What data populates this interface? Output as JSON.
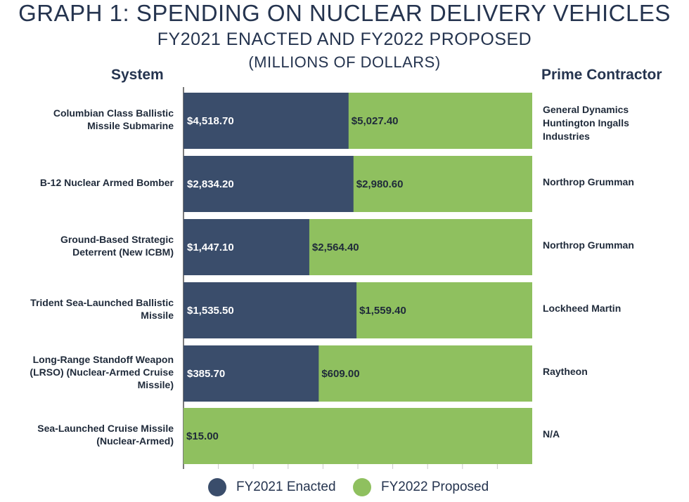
{
  "chart_data": {
    "type": "bar",
    "layout": "horizontal-stacked",
    "title": "GRAPH 1: SPENDING ON NUCLEAR DELIVERY VEHICLES",
    "subtitle": "FY2021 ENACTED AND FY2022 PROPOSED",
    "units": "(MILLIONS OF DOLLARS)",
    "system_header": "System",
    "contractor_header": "Prime Contractor",
    "categories": [
      "Columbian Class Ballistic Missile Submarine",
      "B-12 Nuclear Armed Bomber",
      "Ground-Based Strategic Deterrent (New ICBM)",
      "Trident Sea-Launched Ballistic Missile",
      "Long-Range Standoff Weapon (LRSO) (Nuclear-Armed Cruise Missile)",
      "Sea-Launched Cruise Missile (Nuclear-Armed)"
    ],
    "category_lines": [
      [
        "Columbian Class Ballistic",
        "Missile Submarine"
      ],
      [
        "B-12 Nuclear Armed Bomber"
      ],
      [
        "Ground-Based Strategic",
        "Deterrent (New ICBM)"
      ],
      [
        "Trident Sea-Launched Ballistic",
        "Missile"
      ],
      [
        "Long-Range Standoff Weapon",
        "(LRSO) (Nuclear-Armed Cruise",
        "Missile)"
      ],
      [
        "Sea-Launched Cruise Missile",
        "(Nuclear-Armed)"
      ]
    ],
    "contractors": [
      [
        "General Dynamics",
        "Huntington Ingalls",
        "Industries"
      ],
      [
        "Northrop Grumman"
      ],
      [
        "Northrop Grumman"
      ],
      [
        "Lockheed Martin"
      ],
      [
        "Raytheon"
      ],
      [
        "N/A"
      ]
    ],
    "series": [
      {
        "name": "FY2021 Enacted",
        "color": "#3a4d6b",
        "values": [
          4518.7,
          2834.2,
          1447.1,
          1535.5,
          385.7,
          null
        ],
        "labels": [
          "$4,518.70",
          "$2,834.20",
          "$1,447.10",
          "$1,535.50",
          "$385.70",
          null
        ]
      },
      {
        "name": "FY2022 Proposed",
        "color": "#8fc05f",
        "values": [
          5027.4,
          2980.6,
          2564.4,
          1559.4,
          609.0,
          15.0
        ],
        "labels": [
          "$5,027.40",
          "$2,980.60",
          "$2,564.40",
          "$1,559.40",
          "$609.00",
          "$15.00"
        ]
      }
    ],
    "note": "Bars span full width; the dark segment length is proportional to the FY2021 share of the row total.",
    "grid": true,
    "legend": "bottom"
  }
}
